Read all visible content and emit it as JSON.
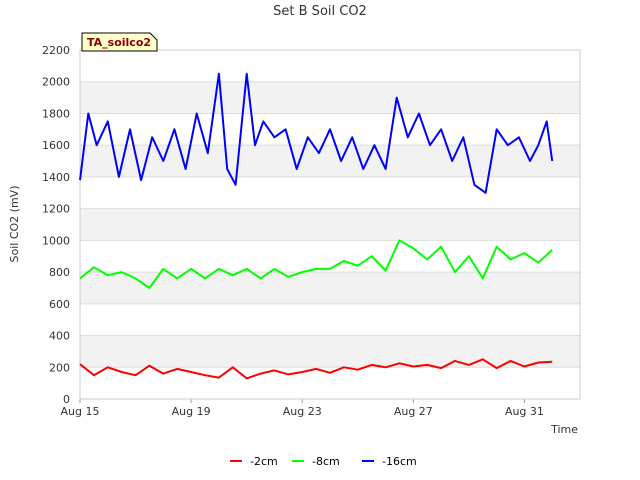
{
  "chart_data": {
    "type": "line",
    "title": "Set B Soil CO2",
    "xlabel": "Time",
    "ylabel": "Soil CO2 (mV)",
    "tag_label": "TA_soilco2",
    "x_range_days": [
      0,
      18
    ],
    "x_ticks": [
      {
        "label": "Aug 15",
        "day": 0
      },
      {
        "label": "Aug 19",
        "day": 4
      },
      {
        "label": "Aug 23",
        "day": 8
      },
      {
        "label": "Aug 27",
        "day": 12
      },
      {
        "label": "Aug 31",
        "day": 16
      }
    ],
    "ylim": [
      0,
      2200
    ],
    "y_ticks": [
      0,
      200,
      400,
      600,
      800,
      1000,
      1200,
      1400,
      1600,
      1800,
      2000,
      2200
    ],
    "grid": "horizontal",
    "legend_position": "bottom-center",
    "series": [
      {
        "name": "-2cm",
        "color": "#ff0000",
        "x": [
          0,
          0.5,
          1,
          1.5,
          2,
          2.5,
          3,
          3.5,
          4,
          4.5,
          5,
          5.5,
          6,
          6.5,
          7,
          7.5,
          8,
          8.5,
          9,
          9.5,
          10,
          10.5,
          11,
          11.5,
          12,
          12.5,
          13,
          13.5,
          14,
          14.5,
          15,
          15.5,
          16,
          16.5,
          17
        ],
        "values": [
          220,
          150,
          200,
          170,
          150,
          210,
          160,
          190,
          170,
          150,
          135,
          200,
          130,
          160,
          180,
          155,
          170,
          190,
          165,
          200,
          185,
          215,
          200,
          225,
          205,
          215,
          195,
          240,
          215,
          250,
          195,
          240,
          205,
          230,
          235
        ]
      },
      {
        "name": "-8cm",
        "color": "#00ff00",
        "x": [
          0,
          0.5,
          1,
          1.5,
          2,
          2.5,
          3,
          3.5,
          4,
          4.5,
          5,
          5.5,
          6,
          6.5,
          7,
          7.5,
          8,
          8.5,
          9,
          9.5,
          10,
          10.5,
          11,
          11.5,
          12,
          12.5,
          13,
          13.5,
          14,
          14.5,
          15,
          15.5,
          16,
          16.5,
          17
        ],
        "values": [
          760,
          830,
          780,
          800,
          760,
          700,
          820,
          760,
          820,
          760,
          820,
          780,
          820,
          760,
          820,
          770,
          800,
          820,
          820,
          870,
          840,
          900,
          810,
          1000,
          950,
          880,
          960,
          800,
          900,
          760,
          960,
          880,
          920,
          860,
          940
        ]
      },
      {
        "name": "-16cm",
        "color": "#0000ff",
        "x": [
          0,
          0.3,
          0.6,
          1,
          1.4,
          1.8,
          2.2,
          2.6,
          3,
          3.4,
          3.8,
          4.2,
          4.6,
          5,
          5.3,
          5.6,
          6,
          6.3,
          6.6,
          7,
          7.4,
          7.8,
          8.2,
          8.6,
          9,
          9.4,
          9.8,
          10.2,
          10.6,
          11,
          11.4,
          11.8,
          12.2,
          12.6,
          13,
          13.4,
          13.8,
          14.2,
          14.6,
          15,
          15.4,
          15.8,
          16.2,
          16.5,
          16.8,
          17
        ],
        "values": [
          1380,
          1800,
          1600,
          1750,
          1400,
          1700,
          1380,
          1650,
          1500,
          1700,
          1450,
          1800,
          1550,
          2050,
          1450,
          1350,
          2050,
          1600,
          1750,
          1650,
          1700,
          1450,
          1650,
          1550,
          1700,
          1500,
          1650,
          1450,
          1600,
          1450,
          1900,
          1650,
          1800,
          1600,
          1700,
          1500,
          1650,
          1350,
          1300,
          1700,
          1600,
          1650,
          1500,
          1600,
          1750,
          1500
        ]
      }
    ]
  }
}
